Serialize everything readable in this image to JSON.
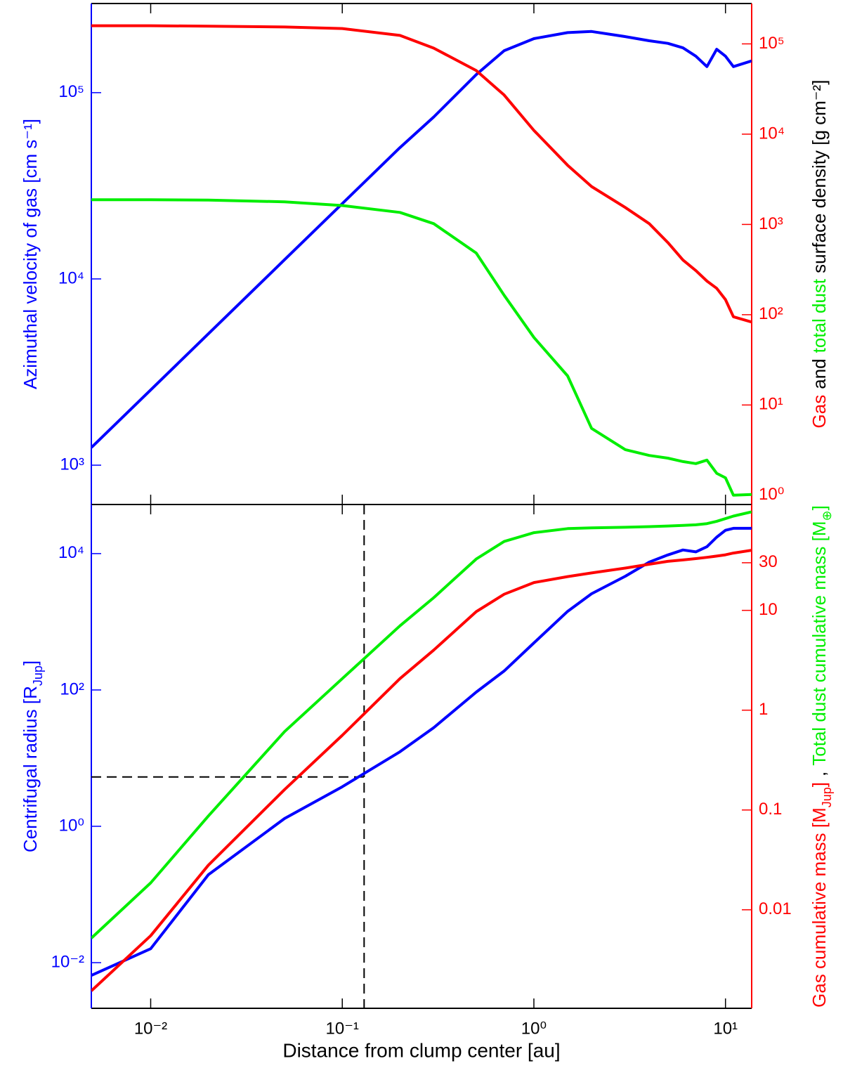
{
  "chart_data": [
    {
      "type": "line",
      "log_x": true,
      "log_y": true,
      "ylabel": "Azimuthal velocity of gas [cm s⁻¹]",
      "ycolor": "#0000ff",
      "y2label": [
        {
          "text": "Gas",
          "color": "#ff0000"
        },
        {
          "text": "and",
          "color": "#000000"
        },
        {
          "text": "total dust",
          "color": "#00ee00"
        },
        {
          "text": "surface density [g cm⁻²]",
          "color": "#000000"
        }
      ],
      "y2color": "#ff0000",
      "x": [
        0.0049,
        0.01,
        0.02,
        0.05,
        0.1,
        0.2,
        0.3,
        0.5,
        0.7,
        1,
        1.5,
        2,
        3,
        4,
        5,
        6,
        7,
        8,
        9,
        10,
        11,
        13.7
      ],
      "xlim": [
        0.0049,
        13.7
      ],
      "xticks": [
        0.01,
        0.1,
        1,
        10
      ],
      "ylim": [
        615,
        301000
      ],
      "yticks": [
        {
          "value": 1000,
          "label": "10³"
        },
        {
          "value": 10000,
          "label": "10⁴"
        },
        {
          "value": 100000,
          "label": "10⁵"
        }
      ],
      "y2lim": [
        0.79,
        280000
      ],
      "y2ticks": [
        {
          "value": 1,
          "label": "10⁰"
        },
        {
          "value": 10,
          "label": "10¹"
        },
        {
          "value": 100,
          "label": "10²"
        },
        {
          "value": 1000,
          "label": "10³"
        },
        {
          "value": 10000,
          "label": "10⁴"
        },
        {
          "value": 100000,
          "label": "10⁵"
        }
      ],
      "series": [
        {
          "color": "#0000ff",
          "axis": "y",
          "values": [
            1243,
            2537,
            5073,
            12680,
            25370,
            50700,
            74000,
            125000,
            168000,
            195000,
            210000,
            213000,
            200000,
            190000,
            184000,
            174000,
            157000,
            138000,
            171000,
            157000,
            138000,
            148000
          ]
        },
        {
          "color": "#ff0000",
          "axis": "y2",
          "values": [
            159000,
            159000,
            157000,
            154000,
            148000,
            124000,
            89800,
            50700,
            27100,
            11000,
            4520,
            2630,
            1540,
            1020,
            631,
            403,
            308,
            236,
            196,
            147,
            95,
            83
          ]
        },
        {
          "color": "#00ee00",
          "axis": "y2",
          "values": [
            1880,
            1880,
            1860,
            1780,
            1620,
            1360,
            1020,
            482,
            164,
            56,
            21,
            5.5,
            3.2,
            2.76,
            2.58,
            2.36,
            2.24,
            2.45,
            1.75,
            1.56,
            1.0,
            1.02
          ]
        }
      ]
    },
    {
      "type": "line",
      "log_x": true,
      "log_y": true,
      "xlabel": "Distance from clump center [au]",
      "ylabel": [
        {
          "text": "Centrifugal radius [R"
        },
        {
          "text": "Jup",
          "sub": true
        },
        {
          "text": "]"
        }
      ],
      "ycolor": "#0000ff",
      "y2label": [
        {
          "text": "Gas cumulative mass [M",
          "color": "#ff0000"
        },
        {
          "text": "Jup",
          "color": "#ff0000",
          "sub": true
        },
        {
          "text": "]",
          "color": "#ff0000"
        },
        {
          "text": ",",
          "color": "#000000"
        },
        {
          "text": "Total dust cumulative mass [M",
          "color": "#00ee00"
        },
        {
          "text": "⊕",
          "color": "#00ee00",
          "sub": true
        },
        {
          "text": "]",
          "color": "#00ee00"
        }
      ],
      "y2color": "#ff0000",
      "x": [
        0.0049,
        0.01,
        0.02,
        0.05,
        0.1,
        0.2,
        0.3,
        0.5,
        0.7,
        1,
        1.5,
        2,
        3,
        4,
        5,
        6,
        7,
        8,
        9,
        10,
        11,
        13.7
      ],
      "xlim": [
        0.0049,
        13.7
      ],
      "xticks": [
        {
          "value": 0.01,
          "label": "10⁻²"
        },
        {
          "value": 0.1,
          "label": "10⁻¹"
        },
        {
          "value": 1,
          "label": "10⁰"
        },
        {
          "value": 10,
          "label": "10¹"
        }
      ],
      "ylim": [
        0.00214,
        52500
      ],
      "yticks": [
        {
          "value": 0.01,
          "label": "10⁻²"
        },
        {
          "value": 1,
          "label": "10⁰"
        },
        {
          "value": 100,
          "label": "10²"
        },
        {
          "value": 10000,
          "label": "10⁴"
        }
      ],
      "y2lim": [
        0.00103,
        115
      ],
      "y2ticks": [
        0.01,
        0.1,
        1,
        10,
        30
      ],
      "reference_x": 0.13,
      "reference_y": 5.3,
      "series": [
        {
          "color": "#0000ff",
          "axis": "y",
          "values": [
            0.0065,
            0.016,
            0.195,
            1.3,
            3.8,
            12.4,
            28,
            93,
            190,
            490,
            1420,
            2580,
            4650,
            7500,
            9550,
            11300,
            10600,
            12600,
            17400,
            22000,
            23500,
            23500
          ]
        },
        {
          "color": "#00ee00",
          "axis": "y2",
          "values": [
            0.0052,
            0.0186,
            0.087,
            0.61,
            2.07,
            7.0,
            13.4,
            32.7,
            49,
            60,
            66,
            67,
            68,
            69,
            70,
            71,
            72,
            74,
            78,
            83,
            88,
            97
          ]
        },
        {
          "color": "#ff0000",
          "axis": "y2",
          "values": [
            0.00154,
            0.0055,
            0.028,
            0.16,
            0.56,
            2.07,
            4.0,
            9.7,
            14.5,
            19,
            21.8,
            23.7,
            26.5,
            29,
            31,
            32,
            33,
            34,
            35,
            36,
            37.5,
            40
          ]
        }
      ]
    }
  ]
}
